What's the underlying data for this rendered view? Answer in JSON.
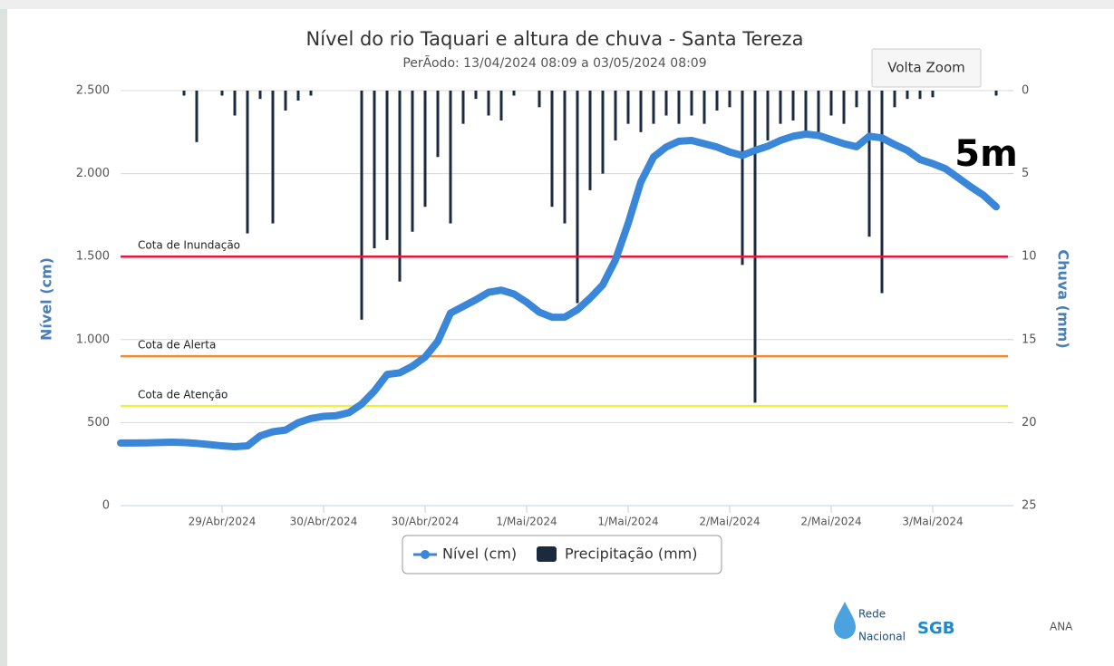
{
  "chart_data": {
    "type": "combo",
    "title": "Nível do rio Taquari e altura de chuva - Santa Tereza",
    "subtitle": "PerÃodo: 13/04/2024 08:09 a 03/05/2024 08:09",
    "button": "Volta Zoom",
    "annotation": "5m",
    "ylabel": "Nível (cm)",
    "y2label": "Chuva (mm)",
    "categories": [
      null,
      null,
      null,
      null,
      null,
      null,
      null,
      null,
      "29/Abr/2024",
      null,
      null,
      null,
      null,
      null,
      null,
      null,
      "30/Abr/2024",
      null,
      null,
      null,
      null,
      null,
      null,
      null,
      "30/Abr/2024",
      null,
      null,
      null,
      null,
      null,
      null,
      null,
      "1/Mai/2024",
      null,
      null,
      null,
      null,
      null,
      null,
      null,
      "1/Mai/2024",
      null,
      null,
      null,
      null,
      null,
      null,
      null,
      "2/Mai/2024",
      null,
      null,
      null,
      null,
      null,
      null,
      null,
      "2/Mai/2024",
      null,
      null,
      null,
      null,
      null,
      null,
      null,
      "3/Mai/2024",
      null,
      null,
      null,
      null,
      null
    ],
    "series": [
      {
        "name": "Nível (cm)",
        "type": "line",
        "color": "#3a86d8",
        "values": [
          377,
          377,
          378,
          380,
          382,
          380,
          375,
          368,
          360,
          355,
          360,
          420,
          445,
          455,
          500,
          525,
          538,
          542,
          560,
          612,
          690,
          790,
          800,
          840,
          895,
          990,
          1160,
          1200,
          1240,
          1285,
          1298,
          1275,
          1225,
          1165,
          1135,
          1135,
          1180,
          1250,
          1330,
          1480,
          1700,
          1950,
          2100,
          2160,
          2195,
          2200,
          2180,
          2160,
          2130,
          2110,
          2140,
          2165,
          2200,
          2225,
          2238,
          2230,
          2205,
          2180,
          2162,
          2225,
          2215,
          2175,
          2140,
          2085,
          2060,
          2030,
          1975,
          1920,
          1870,
          1800
        ]
      },
      {
        "name": "Precipitação (mm)",
        "type": "bar",
        "axis": "y2",
        "color": "#1b2a3e",
        "values": [
          0,
          0,
          0,
          0,
          0,
          0.3,
          3.1,
          0,
          0.3,
          1.5,
          8.6,
          0.5,
          8,
          1.2,
          0.6,
          0.3,
          0,
          0,
          0,
          13.8,
          9.5,
          9,
          11.5,
          8.5,
          7,
          4,
          8,
          2,
          0.5,
          1.5,
          1.8,
          0.3,
          0,
          1,
          7,
          8,
          12.8,
          6,
          5,
          3,
          2,
          2.5,
          2,
          1.5,
          2,
          1.5,
          2,
          1.2,
          1,
          10.5,
          18.8,
          3,
          2,
          1.8,
          2.5,
          2.5,
          1.5,
          2,
          1,
          8.8,
          12.2,
          1,
          0.5,
          0.5,
          0.4,
          0,
          0,
          0,
          0,
          0.3
        ]
      }
    ],
    "ylim": [
      0,
      2500
    ],
    "yticks": [
      0,
      500,
      {
        "value": 1000,
        "label": "1.000"
      },
      {
        "value": 1500,
        "label": "1.500"
      },
      {
        "value": 2000,
        "label": "2.000"
      },
      {
        "value": 2500,
        "label": "2.500"
      }
    ],
    "y2lim": [
      0,
      25
    ],
    "y2ticks": [
      0,
      5,
      10,
      15,
      20,
      25
    ],
    "y2_reversed": true,
    "grid": true,
    "plot_lines": [
      {
        "value": 1500,
        "label": "Cota de Inundação",
        "color": "#e8163c"
      },
      {
        "value": 900,
        "label": "Cota de Alerta",
        "color": "#f08a2c"
      },
      {
        "value": 600,
        "label": "Cota de Atenção",
        "color": "#f2ee3a"
      }
    ],
    "logos": [
      "Rede",
      "Nacional",
      "SGB",
      "ANA"
    ]
  }
}
